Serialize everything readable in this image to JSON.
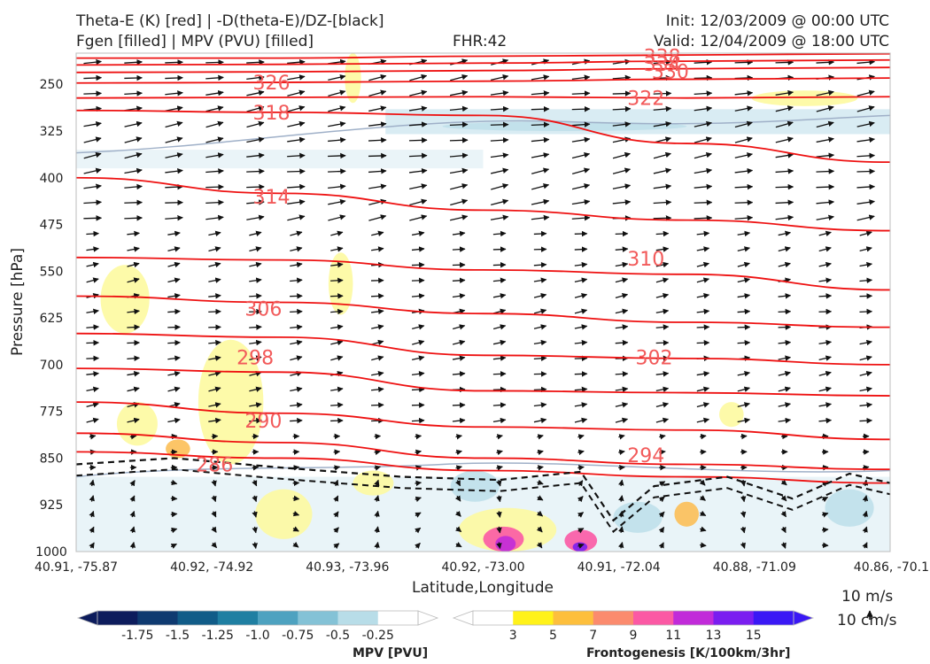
{
  "header": {
    "title_line1": "Theta-E (K) [red] | -D(theta-E)/DZ-[black]",
    "title_line2": "Fgen [filled] | MPV (PVU) [filled]",
    "fhr": "FHR:42",
    "init": "Init: 12/03/2009 @ 00:00 UTC",
    "valid": "Valid: 12/04/2009 @ 18:00 UTC"
  },
  "chart_data": {
    "type": "cross-section",
    "ylabel": "Pressure [hPa]",
    "xlabel": "Latitude,Longitude",
    "y_ticks": [
      250,
      325,
      400,
      475,
      550,
      625,
      700,
      775,
      850,
      925,
      1000
    ],
    "ylim": [
      1000,
      200
    ],
    "x_ticks": [
      "40.91, -75.87",
      "40.92, -74.92",
      "40.93, -73.96",
      "40.92, -73.00",
      "40.91, -72.04",
      "40.88, -71.09",
      "40.86, -70.1"
    ],
    "theta_e_contours": [
      {
        "label": "338",
        "p": [
          208,
          208,
          205,
          203,
          201
        ]
      },
      {
        "label": "334",
        "p": [
          219,
          218,
          216,
          213,
          211
        ]
      },
      {
        "label": "330",
        "p": [
          231,
          230,
          228,
          225,
          223
        ]
      },
      {
        "label": "326",
        "p": [
          248,
          247,
          245,
          242,
          240
        ]
      },
      {
        "label": "322",
        "p": [
          272,
          271,
          270,
          272,
          270
        ]
      },
      {
        "label": "318",
        "p": [
          292,
          295,
          300,
          345,
          375
        ]
      },
      {
        "label": "314",
        "p": [
          400,
          425,
          452,
          468,
          485
        ]
      },
      {
        "label": "310",
        "p": [
          528,
          532,
          548,
          555,
          580
        ]
      },
      {
        "label": "306",
        "p": [
          590,
          600,
          618,
          632,
          640
        ]
      },
      {
        "label": "302",
        "p": [
          650,
          656,
          685,
          690,
          700
        ]
      },
      {
        "label": "298",
        "p": [
          706,
          712,
          742,
          745,
          750
        ]
      },
      {
        "label": "294",
        "p": [
          760,
          778,
          800,
          805,
          820
        ]
      },
      {
        "label": "290",
        "p": [
          810,
          825,
          850,
          860,
          868
        ]
      },
      {
        "label": "286",
        "p": [
          840,
          850,
          870,
          880,
          890
        ]
      }
    ],
    "contour_label_slots": [
      {
        "label": "338",
        "x": 0.72,
        "p": 205
      },
      {
        "label": "334",
        "x": 0.72,
        "p": 217
      },
      {
        "label": "330",
        "x": 0.73,
        "p": 229
      },
      {
        "label": "326",
        "x": 0.24,
        "p": 247
      },
      {
        "label": "322",
        "x": 0.7,
        "p": 272
      },
      {
        "label": "318",
        "x": 0.24,
        "p": 295
      },
      {
        "label": "314",
        "x": 0.24,
        "p": 430
      },
      {
        "label": "310",
        "x": 0.7,
        "p": 530
      },
      {
        "label": "306",
        "x": 0.23,
        "p": 610
      },
      {
        "label": "302",
        "x": 0.71,
        "p": 688
      },
      {
        "label": "298",
        "x": 0.22,
        "p": 688
      },
      {
        "label": "294",
        "x": 0.7,
        "p": 845
      },
      {
        "label": "290",
        "x": 0.23,
        "p": 790
      },
      {
        "label": "286",
        "x": 0.17,
        "p": 860
      }
    ]
  },
  "colorbars": {
    "mpv": {
      "title": "MPV [PVU]",
      "labels": [
        "-1.75",
        "-1.5",
        "-1.25",
        "-1.0",
        "-0.75",
        "-0.5",
        "-0.25"
      ],
      "colors": [
        "#0d1c5c",
        "#0f3a70",
        "#115c88",
        "#1f7fa2",
        "#4ea2c0",
        "#84c2d6",
        "#b8dde8",
        "#ffffff"
      ]
    },
    "fgen": {
      "title": "Frontogenesis [K/100km/3hr]",
      "labels": [
        "3",
        "5",
        "7",
        "9",
        "11",
        "13",
        "15"
      ],
      "colors": [
        "#ffffff",
        "#fff21a",
        "#fdbf3d",
        "#fb8b6e",
        "#fb59a4",
        "#c12bd9",
        "#7a1ef0",
        "#3a18f5"
      ]
    }
  },
  "reference_vectors": [
    "10 m/s",
    "10 cm/s"
  ]
}
